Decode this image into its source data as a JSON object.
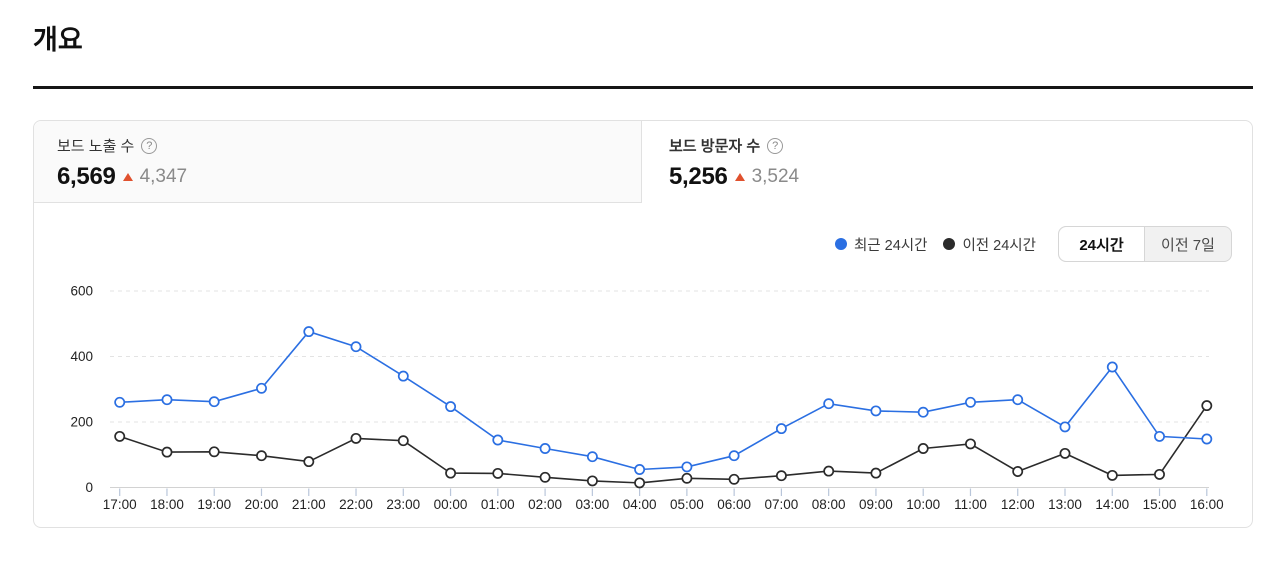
{
  "page": {
    "title": "개요"
  },
  "stats": {
    "impressions": {
      "label": "보드 노출 수",
      "help_glyph": "?",
      "value": "6,569",
      "delta": "4,347",
      "delta_direction": "up",
      "selected": false
    },
    "visitors": {
      "label": "보드 방문자 수",
      "help_glyph": "?",
      "value": "5,256",
      "delta": "3,524",
      "delta_direction": "up",
      "selected": true
    }
  },
  "colors": {
    "recent_series": "#2b6fe2",
    "previous_series": "#2b2b2b",
    "delta_up": "#e0512e",
    "grid_line": "#e3e3e3",
    "axis_line": "#d2d2d2",
    "tick_mark": "#b9c6da",
    "axis_text": "#222222"
  },
  "legend": [
    {
      "label": "최근 24시간",
      "color": "#2b6fe2"
    },
    {
      "label": "이전 24시간",
      "color": "#2b2b2b"
    }
  ],
  "range_toggle": [
    {
      "label": "24시간",
      "active": true
    },
    {
      "label": "이전 7일",
      "active": false
    }
  ],
  "chart_data": {
    "type": "line",
    "x": [
      "17:00",
      "18:00",
      "19:00",
      "20:00",
      "21:00",
      "22:00",
      "23:00",
      "00:00",
      "01:00",
      "02:00",
      "03:00",
      "04:00",
      "05:00",
      "06:00",
      "07:00",
      "08:00",
      "09:00",
      "10:00",
      "11:00",
      "12:00",
      "13:00",
      "14:00",
      "15:00",
      "16:00"
    ],
    "series": [
      {
        "name": "최근 24시간",
        "color": "#2b6fe2",
        "values": [
          260,
          268,
          262,
          303,
          476,
          430,
          340,
          247,
          145,
          119,
          94,
          55,
          63,
          97,
          180,
          256,
          234,
          230,
          260,
          268,
          185,
          368,
          156,
          148
        ]
      },
      {
        "name": "이전 24시간",
        "color": "#2b2b2b",
        "values": [
          156,
          108,
          109,
          97,
          79,
          150,
          143,
          44,
          43,
          31,
          20,
          14,
          28,
          25,
          36,
          50,
          44,
          119,
          133,
          49,
          104,
          37,
          40,
          250
        ]
      }
    ],
    "title": "",
    "xlabel": "",
    "ylabel": "",
    "yticks": [
      0,
      200,
      400,
      600
    ],
    "ylim": [
      0,
      620
    ],
    "grid": "horizontal-dashed",
    "legend_position": "top-right",
    "marker": "open-circle"
  }
}
